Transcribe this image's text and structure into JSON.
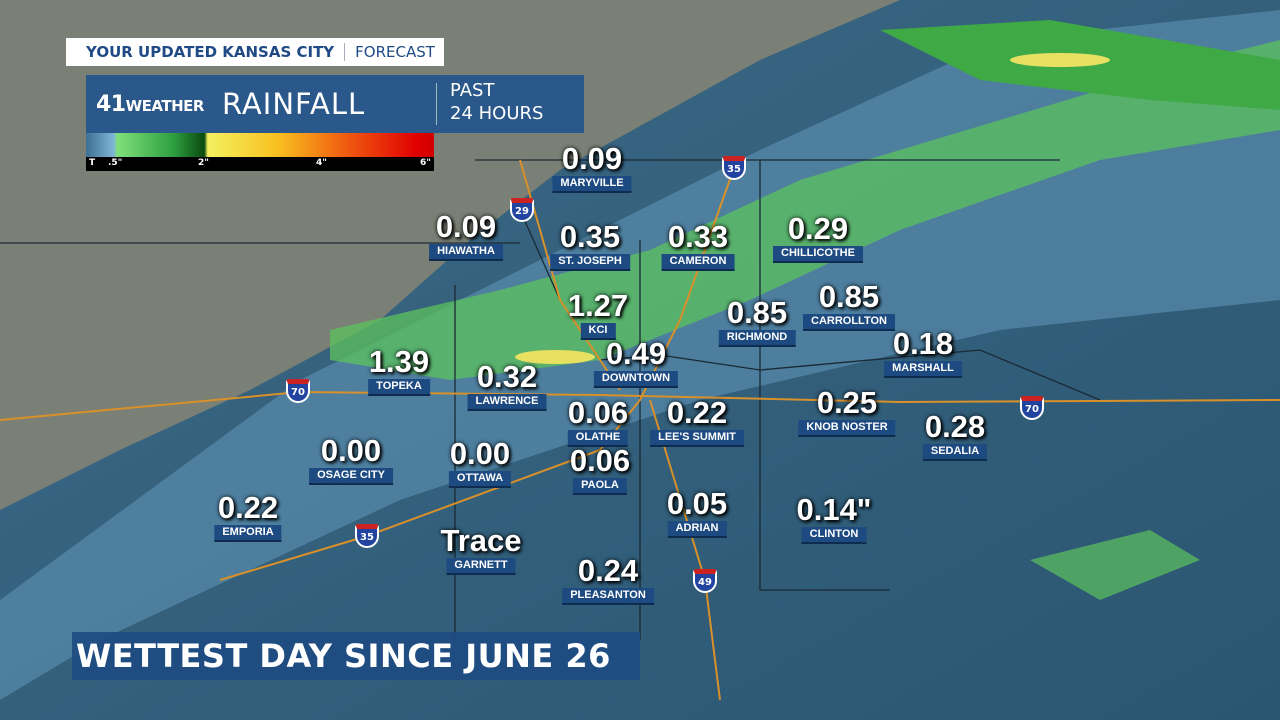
{
  "header": {
    "show_title": "YOUR UPDATED KANSAS CITY",
    "show_section": "FORECAST"
  },
  "panel": {
    "logo_number": "41",
    "logo_text": "WEATHER",
    "title": "RAINFALL",
    "period_line1": "PAST",
    "period_line2": "24 HOURS"
  },
  "legend": {
    "ticks": [
      "T",
      ".5\"",
      "2\"",
      "4\"",
      "6\""
    ],
    "colors": [
      "#7fb5d6",
      "#2fa040",
      "#f4f060",
      "#f05a10",
      "#e00000"
    ]
  },
  "stations": [
    {
      "name": "MARYVILLE",
      "value": "0.09"
    },
    {
      "name": "HIAWATHA",
      "value": "0.09"
    },
    {
      "name": "ST. JOSEPH",
      "value": "0.35"
    },
    {
      "name": "CAMERON",
      "value": "0.33"
    },
    {
      "name": "CHILLICOTHE",
      "value": "0.29"
    },
    {
      "name": "KCI",
      "value": "1.27"
    },
    {
      "name": "RICHMOND",
      "value": "0.85"
    },
    {
      "name": "CARROLLTON",
      "value": "0.85"
    },
    {
      "name": "MARSHALL",
      "value": "0.18"
    },
    {
      "name": "TOPEKA",
      "value": "1.39"
    },
    {
      "name": "DOWNTOWN",
      "value": "0.49"
    },
    {
      "name": "LAWRENCE",
      "value": "0.32"
    },
    {
      "name": "OLATHE",
      "value": "0.06"
    },
    {
      "name": "LEE'S SUMMIT",
      "value": "0.22"
    },
    {
      "name": "KNOB NOSTER",
      "value": "0.25"
    },
    {
      "name": "SEDALIA",
      "value": "0.28"
    },
    {
      "name": "OSAGE CITY",
      "value": "0.00"
    },
    {
      "name": "OTTAWA",
      "value": "0.00"
    },
    {
      "name": "PAOLA",
      "value": "0.06"
    },
    {
      "name": "EMPORIA",
      "value": "0.22"
    },
    {
      "name": "ADRIAN",
      "value": "0.05"
    },
    {
      "name": "CLINTON",
      "value": "0.14\""
    },
    {
      "name": "GARNETT",
      "value": "Trace"
    },
    {
      "name": "PLEASANTON",
      "value": "0.24"
    }
  ],
  "interstates": [
    "29",
    "35",
    "70",
    "70",
    "35",
    "49"
  ],
  "banner": "WETTEST DAY SINCE JUNE 26"
}
